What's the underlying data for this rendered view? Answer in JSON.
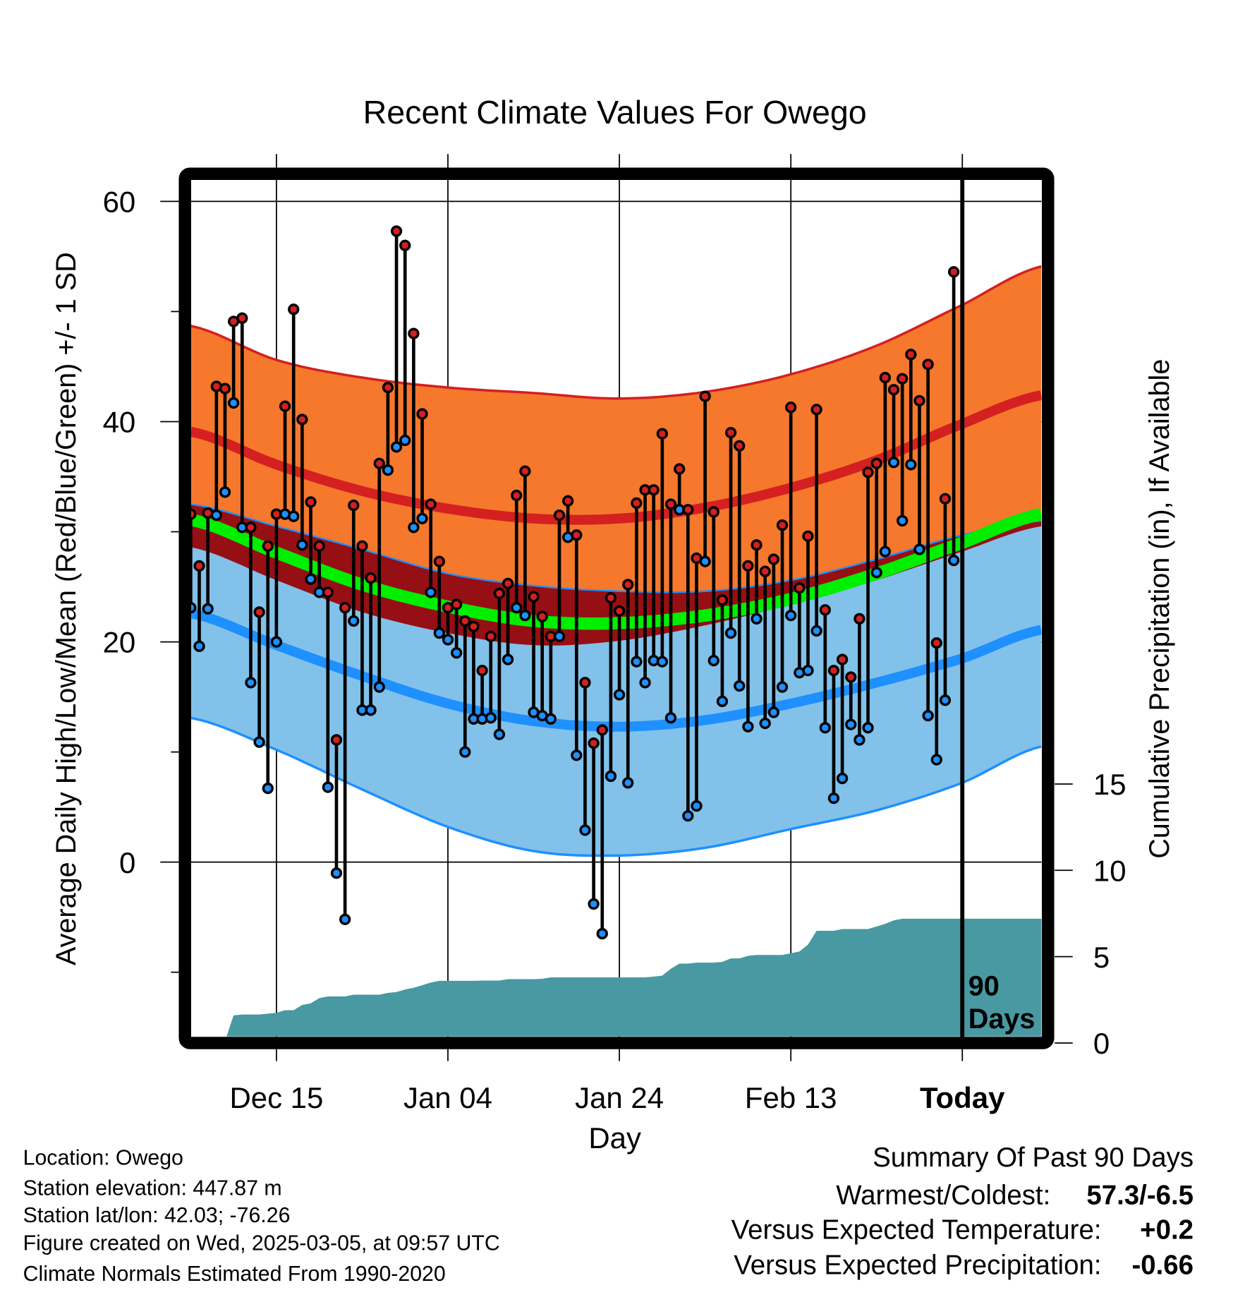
{
  "chart_data": {
    "type": "line",
    "title": "Recent Climate Values For Owego",
    "xlabel": "Day",
    "ylabel": "Average Daily High/Low/Mean (Red/Blue/Green) +/- 1 SD",
    "y2label": "Cumulative Precipitation (in), If Available",
    "x_tick_labels": [
      "Dec 15",
      "Jan 04",
      "Jan 24",
      "Feb 13",
      "Today"
    ],
    "x_tick_days": [
      10,
      30,
      50,
      70,
      90
    ],
    "xlim_days": [
      0,
      99.2
    ],
    "ylim": [
      -16,
      66
    ],
    "y_ticks": [
      0,
      20,
      40,
      60
    ],
    "y_minor_ticks": [
      -10,
      10,
      30,
      50
    ],
    "y2lim": [
      0,
      15
    ],
    "y2_ticks": [
      0,
      5,
      10,
      15
    ],
    "window_label_line1": "90",
    "window_label_line2": "Days",
    "colors": {
      "high": "#d42020",
      "low": "#1e90ff",
      "mean": "#00ee00",
      "orange": "#f5782d",
      "darkred": "#960f14",
      "lightblue": "#82c1e9",
      "precip": "#4899a2"
    },
    "daily": {
      "high": [
        31.6,
        26.9,
        31.7,
        43.2,
        43.0,
        49.1,
        49.4,
        30.4,
        22.7,
        28.7,
        31.6,
        41.4,
        50.2,
        40.2,
        32.7,
        28.7,
        24.5,
        11.1,
        23.1,
        32.4,
        28.7,
        25.8,
        36.2,
        43.1,
        57.3,
        56.0,
        48.0,
        40.7,
        32.5,
        27.3,
        23.1,
        23.4,
        21.9,
        21.4,
        17.4,
        20.5,
        24.4,
        25.3,
        33.3,
        35.5,
        24.1,
        22.3,
        20.5,
        31.5,
        32.8,
        29.7,
        16.3,
        10.8,
        12.0,
        24.0,
        22.8,
        25.2,
        32.6,
        33.8,
        33.8,
        38.9,
        32.5,
        35.7,
        32.0,
        27.6,
        42.3,
        31.8,
        23.8,
        39.0,
        37.8,
        26.9,
        28.8,
        26.4,
        27.5,
        30.6,
        41.3,
        24.9,
        29.6,
        41.1,
        22.9,
        17.4,
        18.4,
        16.8,
        22.1,
        35.4,
        36.2,
        44.0,
        42.9,
        43.9,
        46.1,
        41.9,
        45.2,
        19.9,
        33.0,
        53.6
      ],
      "low": [
        23.1,
        19.6,
        23.0,
        31.5,
        33.6,
        41.7,
        30.4,
        16.3,
        10.9,
        6.7,
        20.0,
        31.6,
        31.4,
        28.8,
        25.7,
        24.5,
        6.8,
        -1.0,
        -5.2,
        21.9,
        13.8,
        13.8,
        15.9,
        35.6,
        37.7,
        38.3,
        30.4,
        31.2,
        24.5,
        20.8,
        20.2,
        19.0,
        10.0,
        13.0,
        13.0,
        13.1,
        11.6,
        18.4,
        23.1,
        22.4,
        13.6,
        13.3,
        13.0,
        20.5,
        29.5,
        9.7,
        2.9,
        -3.8,
        -6.5,
        7.8,
        15.2,
        7.2,
        18.2,
        16.3,
        18.3,
        18.2,
        13.1,
        32.0,
        4.2,
        5.1,
        27.3,
        18.3,
        14.6,
        20.8,
        16.0,
        12.3,
        22.1,
        12.6,
        13.6,
        15.9,
        22.4,
        17.2,
        17.4,
        21.0,
        12.2,
        5.8,
        7.6,
        12.5,
        11.1,
        12.2,
        26.3,
        28.2,
        36.3,
        31.0,
        36.1,
        28.4,
        13.3,
        9.3,
        14.7,
        27.4
      ],
      "cumulative_precip": [
        0,
        0,
        0,
        0,
        0.1,
        1.6,
        1.65,
        1.65,
        1.65,
        1.7,
        1.75,
        1.9,
        1.9,
        2.2,
        2.3,
        2.6,
        2.7,
        2.7,
        2.7,
        2.8,
        2.8,
        2.8,
        2.8,
        2.9,
        2.95,
        3.1,
        3.2,
        3.35,
        3.5,
        3.6,
        3.6,
        3.6,
        3.6,
        3.6,
        3.62,
        3.62,
        3.62,
        3.7,
        3.7,
        3.7,
        3.7,
        3.72,
        3.8,
        3.8,
        3.8,
        3.8,
        3.8,
        3.8,
        3.8,
        3.8,
        3.8,
        3.8,
        3.8,
        3.8,
        3.85,
        3.9,
        4.3,
        4.6,
        4.6,
        4.65,
        4.65,
        4.65,
        4.7,
        4.9,
        4.9,
        5.05,
        5.1,
        5.1,
        5.1,
        5.1,
        5.2,
        5.3,
        5.7,
        6.5,
        6.5,
        6.5,
        6.6,
        6.6,
        6.6,
        6.6,
        6.75,
        6.9,
        7.1,
        7.2,
        7.2,
        7.2,
        7.2,
        7.2,
        7.2,
        7.2
      ]
    },
    "normals": {
      "days": [
        0,
        10,
        20,
        30,
        40,
        50,
        60,
        70,
        80,
        90,
        99.2
      ],
      "high_plus_sd": [
        48.7,
        45.6,
        44.0,
        43.1,
        42.6,
        42.1,
        42.7,
        44.3,
        46.9,
        50.6,
        54.1
      ],
      "high_mean": [
        39.1,
        36.1,
        33.7,
        32.1,
        31.2,
        31.2,
        32.2,
        34.0,
        36.5,
        39.8,
        42.4
      ],
      "high_minus_sd": [
        28.6,
        25.6,
        22.7,
        20.8,
        19.7,
        20.1,
        21.5,
        23.4,
        25.6,
        28.2,
        30.5
      ],
      "mean": [
        31.1,
        28.1,
        25.2,
        23.2,
        21.9,
        21.7,
        22.4,
        23.9,
        26.2,
        29.0,
        31.6
      ],
      "low_plus_sd": [
        32.5,
        30.5,
        28.4,
        26.2,
        25.1,
        24.6,
        24.6,
        25.6,
        27.5,
        29.7,
        31.0
      ],
      "low_mean": [
        22.6,
        19.7,
        16.9,
        14.4,
        12.8,
        12.3,
        12.9,
        14.4,
        16.3,
        18.5,
        21.1
      ],
      "low_minus_sd": [
        13.1,
        10.2,
        6.6,
        3.2,
        1.0,
        0.6,
        1.3,
        3.0,
        4.7,
        7.2,
        10.5
      ]
    }
  },
  "info": {
    "location": "Location: Owego",
    "elevation": "Station elevation: 447.87 m",
    "latlon": "Station lat/lon: 42.03; -76.26",
    "created": "Figure created on Wed, 2025-03-05, at 09:57 UTC",
    "normals": "Climate Normals Estimated From 1990-2020"
  },
  "summary": {
    "title": "Summary Of Past 90 Days",
    "warmest_label": "Warmest/Coldest:",
    "warmest_value": "57.3/-6.5",
    "temp_label": "Versus Expected Temperature:",
    "temp_value": "+0.2",
    "temp_color": "#d42020",
    "precip_label": "Versus Expected Precipitation:",
    "precip_value": "-0.66",
    "precip_color": "#a0522d"
  }
}
